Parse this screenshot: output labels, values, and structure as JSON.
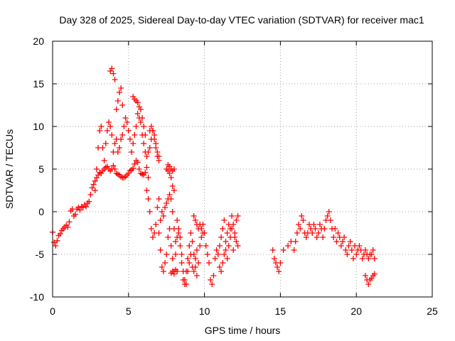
{
  "chart_data": {
    "type": "scatter",
    "title": "Day 328 of 2025, Sidereal Day-to-day VTEC variation (SDTVAR) for receiver mac1",
    "xlabel": "GPS time / hours",
    "ylabel": "SDTVAR / TECUs",
    "xlim": [
      0,
      25
    ],
    "ylim": [
      -10,
      20
    ],
    "xticks": [
      0,
      5,
      10,
      15,
      20,
      25
    ],
    "yticks": [
      -10,
      -5,
      0,
      5,
      10,
      15,
      20
    ],
    "grid": true,
    "marker": "+",
    "series": [
      {
        "name": "SDTVAR",
        "color": "#ff0000",
        "points": [
          [
            0.0,
            -2.4
          ],
          [
            0.1,
            -3.6
          ],
          [
            0.2,
            -4.0
          ],
          [
            0.3,
            -3.4
          ],
          [
            0.4,
            -2.8
          ],
          [
            0.5,
            -2.6
          ],
          [
            0.6,
            -2.2
          ],
          [
            0.7,
            -2.0
          ],
          [
            0.8,
            -1.8
          ],
          [
            0.9,
            -1.6
          ],
          [
            1.0,
            -1.8
          ],
          [
            1.1,
            -1.2
          ],
          [
            1.2,
            0.1
          ],
          [
            1.3,
            0.3
          ],
          [
            1.4,
            -0.5
          ],
          [
            1.5,
            -0.3
          ],
          [
            1.6,
            0.3
          ],
          [
            1.7,
            0.5
          ],
          [
            1.8,
            0.2
          ],
          [
            1.9,
            0.6
          ],
          [
            2.0,
            0.5
          ],
          [
            2.1,
            0.8
          ],
          [
            2.2,
            0.6
          ],
          [
            2.3,
            1.0
          ],
          [
            2.4,
            1.2
          ],
          [
            2.5,
            2.0
          ],
          [
            2.6,
            2.8
          ],
          [
            2.7,
            3.2
          ],
          [
            2.8,
            3.6
          ],
          [
            2.9,
            4.0
          ],
          [
            3.0,
            4.3
          ],
          [
            3.1,
            4.6
          ],
          [
            3.2,
            4.5
          ],
          [
            3.3,
            4.8
          ],
          [
            3.4,
            5.0
          ],
          [
            3.5,
            5.2
          ],
          [
            3.6,
            5.3
          ],
          [
            3.7,
            5.0
          ],
          [
            3.8,
            4.8
          ],
          [
            3.9,
            5.0
          ],
          [
            4.0,
            5.4
          ],
          [
            4.1,
            5.0
          ],
          [
            4.2,
            4.5
          ],
          [
            4.3,
            4.4
          ],
          [
            4.4,
            4.3
          ],
          [
            4.5,
            4.1
          ],
          [
            4.6,
            4.0
          ],
          [
            4.7,
            4.0
          ],
          [
            4.8,
            4.1
          ],
          [
            4.9,
            4.3
          ],
          [
            5.0,
            4.5
          ],
          [
            5.1,
            4.8
          ],
          [
            5.2,
            4.9
          ],
          [
            5.3,
            5.1
          ],
          [
            5.4,
            5.6
          ],
          [
            5.5,
            6.0
          ],
          [
            5.6,
            5.8
          ],
          [
            5.7,
            5.0
          ],
          [
            5.8,
            4.5
          ],
          [
            5.9,
            4.4
          ],
          [
            6.0,
            4.3
          ],
          [
            6.1,
            4.6
          ],
          [
            6.2,
            5.2
          ],
          [
            6.3,
            4.0
          ],
          [
            2.8,
            2.5
          ],
          [
            2.9,
            5.0
          ],
          [
            3.0,
            7.5
          ],
          [
            3.1,
            9.5
          ],
          [
            3.2,
            10.0
          ],
          [
            3.3,
            7.5
          ],
          [
            3.4,
            6.0
          ],
          [
            3.5,
            8.0
          ],
          [
            3.6,
            9.5
          ],
          [
            3.7,
            10.5
          ],
          [
            3.8,
            10.0
          ],
          [
            3.9,
            9.0
          ],
          [
            4.0,
            7.0
          ],
          [
            4.1,
            8.0
          ],
          [
            4.2,
            8.5
          ],
          [
            4.3,
            7.0
          ],
          [
            4.4,
            7.5
          ],
          [
            4.5,
            8.5
          ],
          [
            4.6,
            9.0
          ],
          [
            4.7,
            10.0
          ],
          [
            4.8,
            11.0
          ],
          [
            4.9,
            10.5
          ],
          [
            5.0,
            9.5
          ],
          [
            5.1,
            8.5
          ],
          [
            5.2,
            7.0
          ],
          [
            5.3,
            8.0
          ],
          [
            5.4,
            9.0
          ],
          [
            5.5,
            10.0
          ],
          [
            5.6,
            11.5
          ],
          [
            5.7,
            11.0
          ],
          [
            5.8,
            10.5
          ],
          [
            5.9,
            9.0
          ],
          [
            6.0,
            8.0
          ],
          [
            6.1,
            7.0
          ],
          [
            6.2,
            6.5
          ],
          [
            6.3,
            7.0
          ],
          [
            6.4,
            7.5
          ],
          [
            6.5,
            8.5
          ],
          [
            6.6,
            9.5
          ],
          [
            6.7,
            8.5
          ],
          [
            6.8,
            7.5
          ],
          [
            6.9,
            6.5
          ],
          [
            7.0,
            6.0
          ],
          [
            3.8,
            16.5
          ],
          [
            3.9,
            16.8
          ],
          [
            4.0,
            16.2
          ],
          [
            4.1,
            15.5
          ],
          [
            4.3,
            13.0
          ],
          [
            4.4,
            14.0
          ],
          [
            4.5,
            14.5
          ],
          [
            4.6,
            12.5
          ],
          [
            4.2,
            12.0
          ],
          [
            5.3,
            13.5
          ],
          [
            5.4,
            13.2
          ],
          [
            5.5,
            13.0
          ],
          [
            5.6,
            12.8
          ],
          [
            5.7,
            12.3
          ],
          [
            5.8,
            12.0
          ],
          [
            5.9,
            11.0
          ],
          [
            6.0,
            10.0
          ],
          [
            6.1,
            9.0
          ],
          [
            6.4,
            9.5
          ],
          [
            6.5,
            10.0
          ],
          [
            6.6,
            9.5
          ],
          [
            6.7,
            9.0
          ],
          [
            6.8,
            8.0
          ],
          [
            6.9,
            7.0
          ],
          [
            7.0,
            6.5
          ],
          [
            6.2,
            2.5
          ],
          [
            6.3,
            1.5
          ],
          [
            6.4,
            0.0
          ],
          [
            6.5,
            -2.0
          ],
          [
            6.6,
            -3.0
          ],
          [
            6.7,
            -2.5
          ],
          [
            6.8,
            -1.5
          ],
          [
            6.9,
            0.5
          ],
          [
            7.0,
            1.5
          ],
          [
            7.1,
            -1.0
          ],
          [
            7.2,
            0.0
          ],
          [
            7.3,
            -0.5
          ],
          [
            7.4,
            0.5
          ],
          [
            7.5,
            1.0
          ],
          [
            7.6,
            1.5
          ],
          [
            7.7,
            2.0
          ],
          [
            7.8,
            1.5
          ],
          [
            7.9,
            0.0
          ],
          [
            7.6,
            5.5
          ],
          [
            7.7,
            5.3
          ],
          [
            7.8,
            5.0
          ],
          [
            7.9,
            4.8
          ],
          [
            8.0,
            5.0
          ],
          [
            7.5,
            5.0
          ],
          [
            7.6,
            4.8
          ],
          [
            7.7,
            4.5
          ],
          [
            7.8,
            4.0
          ],
          [
            7.9,
            3.0
          ],
          [
            8.0,
            2.5
          ],
          [
            7.0,
            -2.5
          ],
          [
            7.1,
            -4.5
          ],
          [
            7.2,
            -6.5
          ],
          [
            7.3,
            -7.0
          ],
          [
            7.4,
            -6.0
          ],
          [
            7.5,
            -5.0
          ],
          [
            7.6,
            -3.0
          ],
          [
            7.7,
            -2.0
          ],
          [
            7.8,
            -4.0
          ],
          [
            7.9,
            -5.5
          ],
          [
            8.0,
            -7.0
          ],
          [
            8.1,
            -5.0
          ],
          [
            8.2,
            -3.0
          ],
          [
            8.3,
            -2.5
          ],
          [
            8.4,
            -4.0
          ],
          [
            8.5,
            -6.0
          ],
          [
            8.6,
            -8.0
          ],
          [
            8.7,
            -8.5
          ],
          [
            8.8,
            -7.0
          ],
          [
            8.9,
            -5.5
          ],
          [
            9.0,
            -4.0
          ],
          [
            9.1,
            -2.5
          ],
          [
            9.2,
            -3.5
          ],
          [
            9.3,
            -5.0
          ],
          [
            9.4,
            -6.5
          ],
          [
            9.5,
            -7.5
          ],
          [
            9.6,
            -6.0
          ],
          [
            9.7,
            -4.0
          ],
          [
            9.8,
            -3.0
          ],
          [
            9.9,
            -2.5
          ],
          [
            9.3,
            -0.5
          ],
          [
            9.4,
            -1.0
          ],
          [
            9.5,
            -1.5
          ],
          [
            9.6,
            -2.0
          ],
          [
            9.7,
            -1.5
          ],
          [
            9.8,
            -2.0
          ],
          [
            9.9,
            -1.5
          ],
          [
            10.0,
            -2.5
          ],
          [
            10.1,
            -4.0
          ],
          [
            10.2,
            -5.0
          ],
          [
            10.3,
            -6.0
          ],
          [
            8.0,
            -2.0
          ],
          [
            8.1,
            -3.5
          ],
          [
            8.2,
            -1.0
          ],
          [
            8.3,
            -2.0
          ],
          [
            8.4,
            -3.0
          ],
          [
            8.5,
            -5.0
          ],
          [
            8.6,
            -7.0
          ],
          [
            8.7,
            -8.0
          ],
          [
            8.8,
            -8.5
          ],
          [
            8.9,
            -7.0
          ],
          [
            9.0,
            -6.0
          ],
          [
            9.1,
            -5.0
          ],
          [
            9.2,
            -6.5
          ],
          [
            9.3,
            -7.0
          ],
          [
            9.4,
            -5.5
          ],
          [
            9.5,
            -4.5
          ],
          [
            7.8,
            -7.2
          ],
          [
            7.9,
            -7.0
          ],
          [
            8.0,
            -7.3
          ],
          [
            8.1,
            -6.8
          ],
          [
            8.2,
            -7.0
          ],
          [
            10.4,
            -8.0
          ],
          [
            10.5,
            -8.5
          ],
          [
            10.6,
            -7.5
          ],
          [
            10.7,
            -5.5
          ],
          [
            10.8,
            -4.5
          ],
          [
            10.9,
            -5.0
          ],
          [
            11.0,
            -4.0
          ],
          [
            11.1,
            -3.0
          ],
          [
            11.2,
            -2.0
          ],
          [
            11.3,
            -1.0
          ],
          [
            11.4,
            -3.5
          ],
          [
            11.5,
            -2.5
          ],
          [
            11.6,
            -1.5
          ],
          [
            11.7,
            -2.0
          ],
          [
            11.8,
            -0.5
          ],
          [
            11.9,
            -1.5
          ],
          [
            12.0,
            -2.5
          ],
          [
            12.1,
            -3.5
          ],
          [
            12.2,
            -4.0
          ],
          [
            11.0,
            -6.5
          ],
          [
            11.1,
            -7.0
          ],
          [
            11.2,
            -6.0
          ],
          [
            11.3,
            -5.0
          ],
          [
            11.4,
            -4.5
          ],
          [
            11.5,
            -5.5
          ],
          [
            11.6,
            -4.0
          ],
          [
            11.7,
            -3.0
          ],
          [
            11.8,
            -2.0
          ],
          [
            11.9,
            -4.5
          ],
          [
            12.0,
            -3.0
          ],
          [
            12.1,
            -1.0
          ],
          [
            12.2,
            -0.5
          ],
          [
            14.5,
            -4.5
          ],
          [
            14.6,
            -5.5
          ],
          [
            14.7,
            -6.0
          ],
          [
            14.8,
            -6.5
          ],
          [
            14.9,
            -7.0
          ],
          [
            15.0,
            -6.0
          ],
          [
            15.2,
            -4.5
          ],
          [
            15.5,
            -4.0
          ],
          [
            15.7,
            -3.5
          ],
          [
            15.9,
            -4.5
          ],
          [
            16.0,
            -3.5
          ],
          [
            16.1,
            -2.5
          ],
          [
            16.2,
            -1.5
          ],
          [
            16.3,
            -2.0
          ],
          [
            16.4,
            -0.5
          ],
          [
            16.5,
            -1.0
          ],
          [
            16.6,
            -2.5
          ],
          [
            16.7,
            -3.0
          ],
          [
            16.8,
            -2.5
          ],
          [
            16.9,
            -1.5
          ],
          [
            17.0,
            -2.0
          ],
          [
            17.1,
            -2.5
          ],
          [
            17.2,
            -1.5
          ],
          [
            17.3,
            -2.0
          ],
          [
            17.4,
            -3.0
          ],
          [
            17.5,
            -2.5
          ],
          [
            17.6,
            -1.5
          ],
          [
            17.7,
            -2.0
          ],
          [
            17.8,
            -3.0
          ],
          [
            17.9,
            -2.0
          ],
          [
            18.0,
            -1.0
          ],
          [
            18.1,
            -0.5
          ],
          [
            18.2,
            0.0
          ],
          [
            18.3,
            -1.0
          ],
          [
            18.4,
            -2.0
          ],
          [
            18.5,
            -3.0
          ],
          [
            18.6,
            -2.0
          ],
          [
            18.7,
            -3.5
          ],
          [
            18.8,
            -2.5
          ],
          [
            18.9,
            -3.0
          ],
          [
            19.0,
            -4.0
          ],
          [
            19.1,
            -3.5
          ],
          [
            19.2,
            -3.0
          ],
          [
            19.3,
            -4.5
          ],
          [
            19.4,
            -5.0
          ],
          [
            19.5,
            -4.0
          ],
          [
            19.6,
            -3.5
          ],
          [
            19.7,
            -4.5
          ],
          [
            19.8,
            -5.5
          ],
          [
            19.9,
            -4.0
          ],
          [
            20.0,
            -5.0
          ],
          [
            20.1,
            -4.5
          ],
          [
            20.2,
            -4.0
          ],
          [
            20.3,
            -4.5
          ],
          [
            20.4,
            -5.5
          ],
          [
            20.5,
            -5.0
          ],
          [
            20.6,
            -4.5
          ],
          [
            20.7,
            -5.0
          ],
          [
            20.8,
            -5.5
          ],
          [
            20.9,
            -5.0
          ],
          [
            21.0,
            -5.0
          ],
          [
            21.1,
            -4.5
          ],
          [
            21.2,
            -5.5
          ],
          [
            20.6,
            -7.5
          ],
          [
            20.7,
            -8.0
          ],
          [
            20.8,
            -8.5
          ],
          [
            20.9,
            -8.0
          ],
          [
            21.0,
            -7.8
          ],
          [
            21.1,
            -7.5
          ],
          [
            21.2,
            -7.3
          ]
        ]
      }
    ]
  }
}
